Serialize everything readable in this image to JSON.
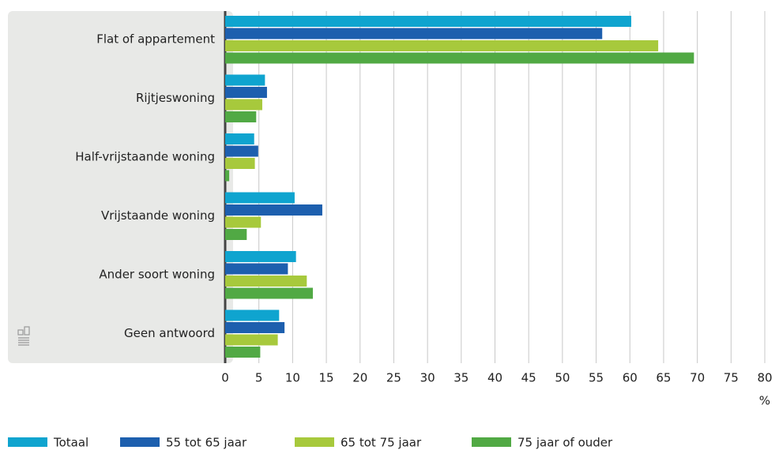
{
  "chart_data": {
    "type": "hbar",
    "categories": [
      "Flat of appartement",
      "Rijtjeswoning",
      "Half-vrijstaande woning",
      "Vrijstaande woning",
      "Ander soort woning",
      "Geen antwoord"
    ],
    "series": [
      {
        "name": "Totaal",
        "color": "#0fa4cf",
        "values": [
          60.2,
          5.9,
          4.3,
          10.3,
          10.5,
          8.0
        ]
      },
      {
        "name": "55 tot 65 jaar",
        "color": "#1d5fae",
        "values": [
          55.9,
          6.2,
          4.9,
          14.4,
          9.3,
          8.8
        ]
      },
      {
        "name": "65 tot 75 jaar",
        "color": "#a7c93c",
        "values": [
          64.2,
          5.5,
          4.4,
          5.3,
          12.1,
          7.8
        ]
      },
      {
        "name": "75 jaar of ouder",
        "color": "#51a944",
        "values": [
          69.5,
          4.6,
          0.6,
          3.2,
          13.0,
          5.2
        ]
      }
    ],
    "xlabel": "%",
    "xlim": [
      0,
      80
    ],
    "xticks": [
      0,
      5,
      10,
      15,
      20,
      25,
      30,
      35,
      40,
      45,
      50,
      55,
      60,
      65,
      70,
      75,
      80
    ],
    "grid": true,
    "legend": "bottom"
  }
}
